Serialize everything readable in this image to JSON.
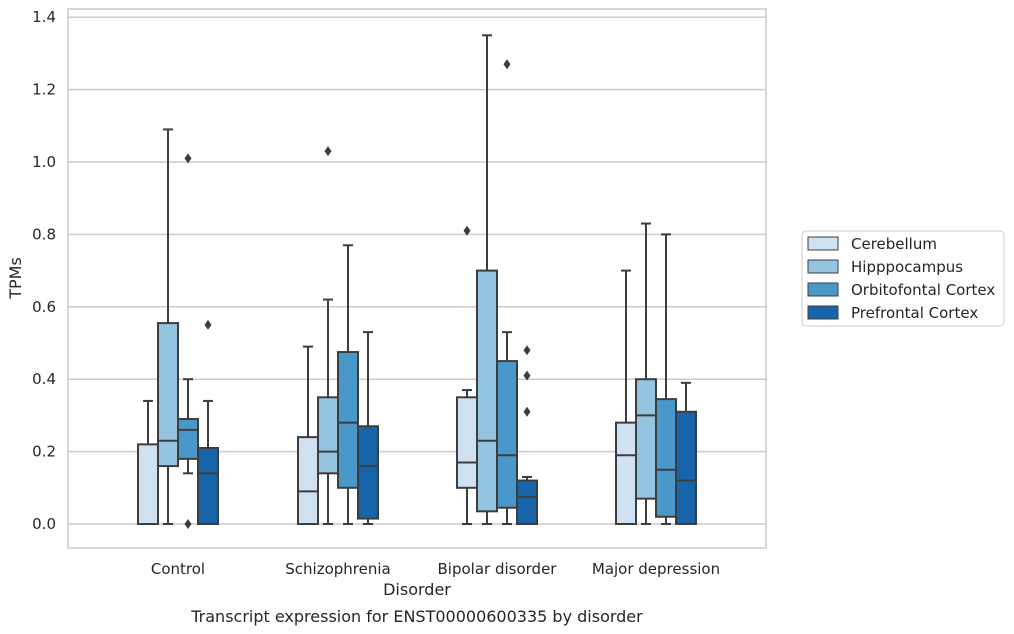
{
  "chart_data": {
    "type": "box",
    "xlabel": "Disorder",
    "ylabel": "TPMs",
    "caption": "Transcript expression for ENST00000600335 by disorder",
    "ylim": [
      -0.065,
      1.42
    ],
    "yticks": [
      "0.0",
      "0.2",
      "0.4",
      "0.6",
      "0.8",
      "1.0",
      "1.2",
      "1.4"
    ],
    "grid": "horizontal",
    "legend_position": "right",
    "categories": [
      "Control",
      "Schizophrenia",
      "Bipolar disorder",
      "Major depression"
    ],
    "series": [
      {
        "name": "Cerebellum",
        "color": "#d0e1f2",
        "boxes": [
          {
            "min": 0.0,
            "q1": 0.0,
            "median": 0.0,
            "q3": 0.22,
            "max": 0.34,
            "outliers": []
          },
          {
            "min": 0.0,
            "q1": 0.0,
            "median": 0.09,
            "q3": 0.24,
            "max": 0.49,
            "outliers": []
          },
          {
            "min": 0.0,
            "q1": 0.1,
            "median": 0.17,
            "q3": 0.35,
            "max": 0.37,
            "outliers": [
              0.81
            ]
          },
          {
            "min": 0.0,
            "q1": 0.0,
            "median": 0.19,
            "q3": 0.28,
            "max": 0.7,
            "outliers": []
          }
        ]
      },
      {
        "name": "Hipppocampus",
        "color": "#94c4df",
        "boxes": [
          {
            "min": 0.0,
            "q1": 0.16,
            "median": 0.23,
            "q3": 0.555,
            "max": 1.09,
            "outliers": []
          },
          {
            "min": 0.0,
            "q1": 0.14,
            "median": 0.2,
            "q3": 0.35,
            "max": 0.62,
            "outliers": [
              1.03
            ]
          },
          {
            "min": 0.0,
            "q1": 0.035,
            "median": 0.23,
            "q3": 0.7,
            "max": 1.35,
            "outliers": []
          },
          {
            "min": 0.0,
            "q1": 0.07,
            "median": 0.3,
            "q3": 0.4,
            "max": 0.83,
            "outliers": []
          }
        ]
      },
      {
        "name": "Orbitofontal Cortex",
        "color": "#4a98c9",
        "boxes": [
          {
            "min": 0.14,
            "q1": 0.18,
            "median": 0.26,
            "q3": 0.29,
            "max": 0.4,
            "outliers": [
              0.0,
              1.01
            ]
          },
          {
            "min": 0.0,
            "q1": 0.1,
            "median": 0.28,
            "q3": 0.475,
            "max": 0.77,
            "outliers": []
          },
          {
            "min": 0.0,
            "q1": 0.045,
            "median": 0.19,
            "q3": 0.45,
            "max": 0.53,
            "outliers": [
              1.27
            ]
          },
          {
            "min": 0.0,
            "q1": 0.02,
            "median": 0.15,
            "q3": 0.345,
            "max": 0.8,
            "outliers": []
          }
        ]
      },
      {
        "name": "Prefrontal Cortex",
        "color": "#1764ab",
        "boxes": [
          {
            "min": 0.0,
            "q1": 0.0,
            "median": 0.14,
            "q3": 0.21,
            "max": 0.34,
            "outliers": [
              0.55
            ]
          },
          {
            "min": 0.0,
            "q1": 0.015,
            "median": 0.16,
            "q3": 0.27,
            "max": 0.53,
            "outliers": []
          },
          {
            "min": 0.0,
            "q1": 0.0,
            "median": 0.075,
            "q3": 0.12,
            "max": 0.13,
            "outliers": [
              0.31,
              0.41,
              0.48
            ]
          },
          {
            "min": 0.0,
            "q1": 0.0,
            "median": 0.12,
            "q3": 0.31,
            "max": 0.39,
            "outliers": []
          }
        ]
      }
    ]
  }
}
